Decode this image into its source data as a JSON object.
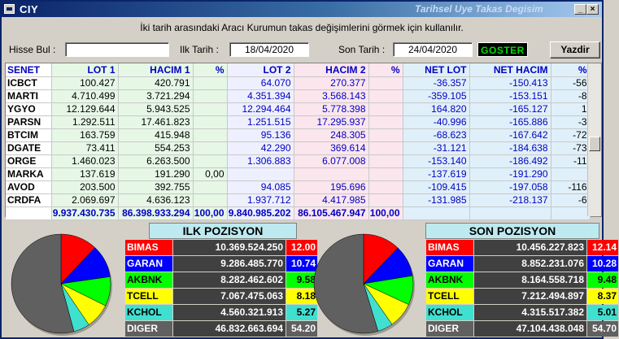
{
  "window": {
    "title": "CIY",
    "right_title": "Tarihsel Uye Takas Degisim"
  },
  "info_text": "İki tarih arasındaki  Aracı Kurumun takas değişimlerini görmek için kullanılır.",
  "controls": {
    "search_label": "Hisse Bul :",
    "search_value": "",
    "start_label": "Ilk Tarih :",
    "start_date": "18/04/2020",
    "end_label": "Son Tarih :",
    "end_date": "24/04/2020",
    "show_button": "GOSTER",
    "print_button": "Yazdir"
  },
  "table": {
    "headers": [
      "SENET",
      "LOT 1",
      "HACIM 1",
      "%",
      "LOT 2",
      "HACIM 2",
      "%",
      "NET LOT",
      "NET HACIM",
      "%"
    ],
    "rows": [
      [
        "ICBCT",
        "100.427",
        "420.791",
        "",
        "64.070",
        "270.377",
        "",
        "-36.357",
        "-150.413",
        "-56"
      ],
      [
        "MARTI",
        "4.710.499",
        "3.721.294",
        "",
        "4.351.394",
        "3.568.143",
        "",
        "-359.105",
        "-153.151",
        "-8"
      ],
      [
        "YGYO",
        "12.129.644",
        "5.943.525",
        "",
        "12.294.464",
        "5.778.398",
        "",
        "164.820",
        "-165.127",
        "1"
      ],
      [
        "PARSN",
        "1.292.511",
        "17.461.823",
        "",
        "1.251.515",
        "17.295.937",
        "",
        "-40.996",
        "-165.886",
        "-3"
      ],
      [
        "BTCIM",
        "163.759",
        "415.948",
        "",
        "95.136",
        "248.305",
        "",
        "-68.623",
        "-167.642",
        "-72"
      ],
      [
        "DGATE",
        "73.411",
        "554.253",
        "",
        "42.290",
        "369.614",
        "",
        "-31.121",
        "-184.638",
        "-73"
      ],
      [
        "ORGE",
        "1.460.023",
        "6.263.500",
        "",
        "1.306.883",
        "6.077.008",
        "",
        "-153.140",
        "-186.492",
        "-11"
      ],
      [
        "MARKA",
        "137.619",
        "191.290",
        "0,00",
        "",
        "",
        "",
        "-137.619",
        "-191.290",
        ""
      ],
      [
        "AVOD",
        "203.500",
        "392.755",
        "",
        "94.085",
        "195.696",
        "",
        "-109.415",
        "-197.058",
        "-116"
      ],
      [
        "CRDFA",
        "2.069.697",
        "4.636.123",
        "",
        "1.937.712",
        "4.417.985",
        "",
        "-131.985",
        "-218.137",
        "-6"
      ]
    ],
    "totals": [
      "",
      "9.937.430.735",
      "86.398.933.294",
      "100,00",
      "9.840.985.202",
      "86.105.467.947",
      "100,00",
      "",
      "",
      ""
    ]
  },
  "ilk_pozisyon": {
    "title": "ILK POZISYON",
    "rows": [
      {
        "code": "BIMAS",
        "value": "10.369.524.250",
        "pct": "12.00",
        "bg": "#ff0000",
        "fg": "#ffffff",
        "pct_bg": "#ff0000",
        "pct_fg": "#ffffff",
        "slice": 12.0
      },
      {
        "code": "GARAN",
        "value": "9.286.485.770",
        "pct": "10.74",
        "bg": "#0000ff",
        "fg": "#ffffff",
        "pct_bg": "#0000ff",
        "pct_fg": "#ffffff",
        "slice": 10.74
      },
      {
        "code": "AKBNK",
        "value": "8.282.462.602",
        "pct": "9.58",
        "bg": "#00ff00",
        "fg": "#000000",
        "pct_bg": "#00ff00",
        "pct_fg": "#000000",
        "slice": 9.58
      },
      {
        "code": "TCELL",
        "value": "7.067.475.063",
        "pct": "8.18",
        "bg": "#ffff00",
        "fg": "#000000",
        "pct_bg": "#ffff00",
        "pct_fg": "#000000",
        "slice": 8.18
      },
      {
        "code": "KCHOL",
        "value": "4.560.321.913",
        "pct": "5.27",
        "bg": "#40e0d0",
        "fg": "#000000",
        "pct_bg": "#40e0d0",
        "pct_fg": "#000000",
        "slice": 5.27
      },
      {
        "code": "DIGER",
        "value": "46.832.663.694",
        "pct": "54.20",
        "bg": "#606060",
        "fg": "#ffffff",
        "pct_bg": "#606060",
        "pct_fg": "#ffffff",
        "slice": 54.2
      }
    ]
  },
  "son_pozisyon": {
    "title": "SON POZISYON",
    "rows": [
      {
        "code": "BIMAS",
        "value": "10.456.227.823",
        "pct": "12.14",
        "bg": "#ff0000",
        "fg": "#ffffff",
        "pct_bg": "#ff0000",
        "pct_fg": "#ffffff",
        "slice": 12.14
      },
      {
        "code": "GARAN",
        "value": "8.852.231.076",
        "pct": "10.28",
        "bg": "#0000ff",
        "fg": "#ffffff",
        "pct_bg": "#0000ff",
        "pct_fg": "#ffffff",
        "slice": 10.28
      },
      {
        "code": "AKBNK",
        "value": "8.164.558.718",
        "pct": "9.48",
        "bg": "#00ff00",
        "fg": "#000000",
        "pct_bg": "#00ff00",
        "pct_fg": "#000000",
        "slice": 9.48
      },
      {
        "code": "TCELL",
        "value": "7.212.494.897",
        "pct": "8.37",
        "bg": "#ffff00",
        "fg": "#000000",
        "pct_bg": "#ffff00",
        "pct_fg": "#000000",
        "slice": 8.37
      },
      {
        "code": "KCHOL",
        "value": "4.315.517.382",
        "pct": "5.01",
        "bg": "#40e0d0",
        "fg": "#000000",
        "pct_bg": "#40e0d0",
        "pct_fg": "#000000",
        "slice": 5.01
      },
      {
        "code": "DIGER",
        "value": "47.104.438.048",
        "pct": "54.70",
        "bg": "#606060",
        "fg": "#ffffff",
        "pct_bg": "#606060",
        "pct_fg": "#ffffff",
        "slice": 54.7
      }
    ]
  }
}
